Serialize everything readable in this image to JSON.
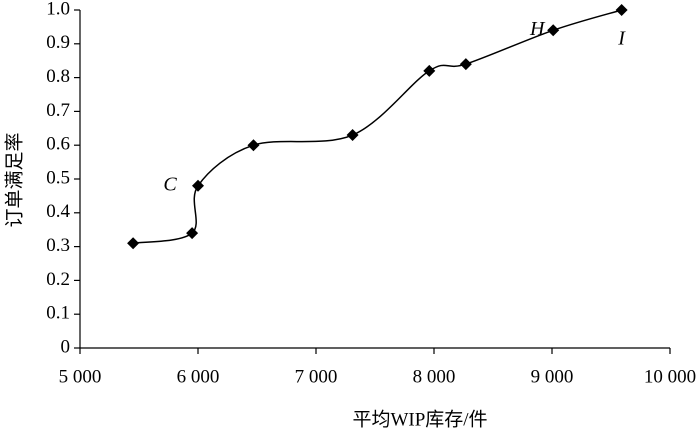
{
  "chart_data": {
    "type": "line",
    "x_label": "平均WIP库存/件",
    "y_label": "订单满足率",
    "x": [
      5450,
      5950,
      6000,
      6470,
      7310,
      7960,
      8270,
      9010,
      9590
    ],
    "values": [
      0.31,
      0.34,
      0.48,
      0.6,
      0.63,
      0.82,
      0.84,
      0.94,
      1.0
    ],
    "color": "#000000",
    "smooth": true,
    "marker": "diamond",
    "annotations": [
      {
        "text": "C",
        "point": 2
      },
      {
        "text": "H",
        "point": 7
      },
      {
        "text": "I",
        "point": 8
      }
    ],
    "xlim": [
      5000,
      10000
    ],
    "xticks": [
      {
        "value": 5000,
        "label": "5 000"
      },
      {
        "value": 6000,
        "label": "6 000"
      },
      {
        "value": 7000,
        "label": "7 000"
      },
      {
        "value": 8000,
        "label": "8 000"
      },
      {
        "value": 9000,
        "label": "9 000"
      },
      {
        "value": 10000,
        "label": "10 000"
      }
    ],
    "ylim": [
      0,
      1
    ],
    "yticks": [
      0,
      0.1,
      0.2,
      0.3,
      0.4,
      0.5,
      0.6,
      0.7,
      0.8,
      0.9,
      {
        "value": 1,
        "label": "1.0"
      }
    ],
    "grid": false
  }
}
